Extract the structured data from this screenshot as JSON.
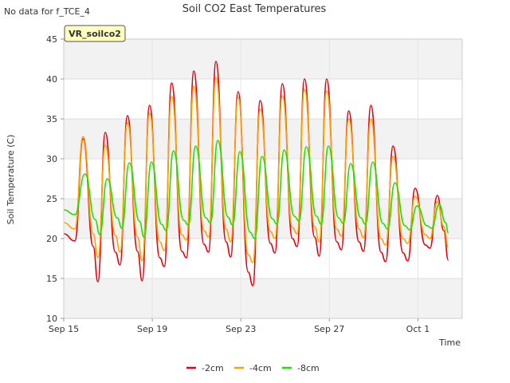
{
  "chart_data": {
    "type": "line",
    "title": "Soil CO2 East Temperatures",
    "note": "No data for f_TCE_4",
    "station_label": "VR_soilco2",
    "xlabel": "Time",
    "ylabel": "Soil Temperature (C)",
    "ylim": [
      10,
      45
    ],
    "yticks": [
      10,
      15,
      20,
      25,
      30,
      35,
      40,
      45
    ],
    "xlim": [
      "2023-09-15",
      "2023-10-03"
    ],
    "xticks": [
      {
        "date": "2023-09-15",
        "label": "Sep 15"
      },
      {
        "date": "2023-09-19",
        "label": "Sep 19"
      },
      {
        "date": "2023-09-23",
        "label": "Sep 23"
      },
      {
        "date": "2023-09-27",
        "label": "Sep 27"
      },
      {
        "date": "2023-10-01",
        "label": "Oct 1"
      }
    ],
    "grid": true,
    "legend_position": "bottom",
    "series": [
      {
        "name": "-2cm",
        "color": "#e8000b",
        "points": [
          [
            "2023-09-15 00:00",
            20.6
          ],
          [
            "2023-09-15 12:00",
            19.7
          ],
          [
            "2023-09-15 21:00",
            32.5
          ],
          [
            "2023-09-16 08:00",
            19.0
          ],
          [
            "2023-09-16 13:00",
            14.6
          ],
          [
            "2023-09-16 21:00",
            33.3
          ],
          [
            "2023-09-17 08:00",
            18.3
          ],
          [
            "2023-09-17 13:00",
            16.7
          ],
          [
            "2023-09-17 21:00",
            35.4
          ],
          [
            "2023-09-18 08:00",
            18.4
          ],
          [
            "2023-09-18 13:00",
            14.7
          ],
          [
            "2023-09-18 21:00",
            36.7
          ],
          [
            "2023-09-19 08:00",
            17.6
          ],
          [
            "2023-09-19 13:00",
            16.5
          ],
          [
            "2023-09-19 21:00",
            39.5
          ],
          [
            "2023-09-20 08:00",
            18.4
          ],
          [
            "2023-09-20 13:00",
            17.6
          ],
          [
            "2023-09-20 21:00",
            41.0
          ],
          [
            "2023-09-21 08:00",
            19.3
          ],
          [
            "2023-09-21 13:00",
            18.3
          ],
          [
            "2023-09-21 21:00",
            42.2
          ],
          [
            "2023-09-22 08:00",
            19.6
          ],
          [
            "2023-09-22 13:00",
            17.7
          ],
          [
            "2023-09-22 21:00",
            38.4
          ],
          [
            "2023-09-23 08:00",
            15.8
          ],
          [
            "2023-09-23 13:00",
            14.1
          ],
          [
            "2023-09-23 21:00",
            37.3
          ],
          [
            "2023-09-24 08:00",
            19.4
          ],
          [
            "2023-09-24 13:00",
            18.2
          ],
          [
            "2023-09-24 21:00",
            39.4
          ],
          [
            "2023-09-25 08:00",
            20.0
          ],
          [
            "2023-09-25 13:00",
            19.0
          ],
          [
            "2023-09-25 21:00",
            40.0
          ],
          [
            "2023-09-26 08:00",
            20.2
          ],
          [
            "2023-09-26 13:00",
            17.8
          ],
          [
            "2023-09-26 21:00",
            40.0
          ],
          [
            "2023-09-27 08:00",
            19.6
          ],
          [
            "2023-09-27 13:00",
            18.6
          ],
          [
            "2023-09-27 21:00",
            36.0
          ],
          [
            "2023-09-28 08:00",
            19.6
          ],
          [
            "2023-09-28 13:00",
            18.4
          ],
          [
            "2023-09-28 21:00",
            36.7
          ],
          [
            "2023-09-29 08:00",
            18.3
          ],
          [
            "2023-09-29 13:00",
            17.1
          ],
          [
            "2023-09-29 21:00",
            31.6
          ],
          [
            "2023-09-30 08:00",
            18.2
          ],
          [
            "2023-09-30 13:00",
            17.2
          ],
          [
            "2023-09-30 21:00",
            26.3
          ],
          [
            "2023-10-01 08:00",
            19.2
          ],
          [
            "2023-10-01 13:00",
            18.8
          ],
          [
            "2023-10-01 21:00",
            25.4
          ],
          [
            "2023-10-02 04:00",
            21.0
          ],
          [
            "2023-10-02 09:00",
            17.3
          ]
        ]
      },
      {
        "name": "-4cm",
        "color": "#ff9f00",
        "points": [
          [
            "2023-09-15 00:00",
            22.0
          ],
          [
            "2023-09-15 12:00",
            21.2
          ],
          [
            "2023-09-15 21:00",
            32.8
          ],
          [
            "2023-09-16 08:00",
            20.6
          ],
          [
            "2023-09-16 13:00",
            17.6
          ],
          [
            "2023-09-16 21:00",
            31.7
          ],
          [
            "2023-09-17 08:00",
            20.4
          ],
          [
            "2023-09-17 13:00",
            18.3
          ],
          [
            "2023-09-17 21:00",
            34.5
          ],
          [
            "2023-09-18 08:00",
            20.2
          ],
          [
            "2023-09-18 13:00",
            17.2
          ],
          [
            "2023-09-18 21:00",
            35.7
          ],
          [
            "2023-09-19 08:00",
            19.6
          ],
          [
            "2023-09-19 13:00",
            18.5
          ],
          [
            "2023-09-19 21:00",
            37.8
          ],
          [
            "2023-09-20 08:00",
            20.5
          ],
          [
            "2023-09-20 13:00",
            19.8
          ],
          [
            "2023-09-20 21:00",
            39.1
          ],
          [
            "2023-09-21 08:00",
            21.0
          ],
          [
            "2023-09-21 13:00",
            20.2
          ],
          [
            "2023-09-21 21:00",
            40.2
          ],
          [
            "2023-09-22 08:00",
            21.2
          ],
          [
            "2023-09-22 13:00",
            19.6
          ],
          [
            "2023-09-22 21:00",
            37.7
          ],
          [
            "2023-09-23 08:00",
            18.0
          ],
          [
            "2023-09-23 13:00",
            17.0
          ],
          [
            "2023-09-23 21:00",
            36.2
          ],
          [
            "2023-09-24 08:00",
            20.9
          ],
          [
            "2023-09-24 13:00",
            20.0
          ],
          [
            "2023-09-24 21:00",
            37.9
          ],
          [
            "2023-09-25 08:00",
            21.4
          ],
          [
            "2023-09-25 13:00",
            20.6
          ],
          [
            "2023-09-25 21:00",
            38.7
          ],
          [
            "2023-09-26 08:00",
            21.5
          ],
          [
            "2023-09-26 13:00",
            19.6
          ],
          [
            "2023-09-26 21:00",
            38.5
          ],
          [
            "2023-09-27 08:00",
            21.2
          ],
          [
            "2023-09-27 13:00",
            20.3
          ],
          [
            "2023-09-27 21:00",
            35.0
          ],
          [
            "2023-09-28 08:00",
            21.2
          ],
          [
            "2023-09-28 13:00",
            20.1
          ],
          [
            "2023-09-28 21:00",
            35.0
          ],
          [
            "2023-09-29 08:00",
            20.0
          ],
          [
            "2023-09-29 13:00",
            19.2
          ],
          [
            "2023-09-29 21:00",
            30.3
          ],
          [
            "2023-09-30 08:00",
            20.0
          ],
          [
            "2023-09-30 13:00",
            19.4
          ],
          [
            "2023-09-30 21:00",
            25.3
          ],
          [
            "2023-10-01 08:00",
            20.5
          ],
          [
            "2023-10-01 13:00",
            20.0
          ],
          [
            "2023-10-01 21:00",
            24.6
          ],
          [
            "2023-10-02 04:00",
            21.5
          ],
          [
            "2023-10-02 09:00",
            18.9
          ]
        ]
      },
      {
        "name": "-8cm",
        "color": "#1fe000",
        "points": [
          [
            "2023-09-15 00:00",
            23.6
          ],
          [
            "2023-09-15 12:00",
            23.0
          ],
          [
            "2023-09-15 23:00",
            28.1
          ],
          [
            "2023-09-16 10:00",
            22.4
          ],
          [
            "2023-09-16 15:00",
            20.5
          ],
          [
            "2023-09-16 23:00",
            27.5
          ],
          [
            "2023-09-17 10:00",
            22.6
          ],
          [
            "2023-09-17 15:00",
            21.3
          ],
          [
            "2023-09-17 23:00",
            29.5
          ],
          [
            "2023-09-18 10:00",
            22.2
          ],
          [
            "2023-09-18 15:00",
            20.2
          ],
          [
            "2023-09-18 23:00",
            29.6
          ],
          [
            "2023-09-19 10:00",
            21.8
          ],
          [
            "2023-09-19 15:00",
            21.0
          ],
          [
            "2023-09-19 23:00",
            31.0
          ],
          [
            "2023-09-20 10:00",
            22.3
          ],
          [
            "2023-09-20 15:00",
            21.7
          ],
          [
            "2023-09-20 23:00",
            31.6
          ],
          [
            "2023-09-21 10:00",
            22.6
          ],
          [
            "2023-09-21 15:00",
            22.0
          ],
          [
            "2023-09-21 23:00",
            32.3
          ],
          [
            "2023-09-22 10:00",
            22.7
          ],
          [
            "2023-09-22 15:00",
            21.7
          ],
          [
            "2023-09-22 23:00",
            30.9
          ],
          [
            "2023-09-23 10:00",
            20.8
          ],
          [
            "2023-09-23 15:00",
            20.0
          ],
          [
            "2023-09-23 23:00",
            30.3
          ],
          [
            "2023-09-24 10:00",
            22.5
          ],
          [
            "2023-09-24 15:00",
            21.8
          ],
          [
            "2023-09-24 23:00",
            31.1
          ],
          [
            "2023-09-25 10:00",
            22.8
          ],
          [
            "2023-09-25 15:00",
            22.2
          ],
          [
            "2023-09-25 23:00",
            31.5
          ],
          [
            "2023-09-26 10:00",
            22.8
          ],
          [
            "2023-09-26 15:00",
            21.8
          ],
          [
            "2023-09-26 23:00",
            31.6
          ],
          [
            "2023-09-27 10:00",
            22.6
          ],
          [
            "2023-09-27 15:00",
            21.9
          ],
          [
            "2023-09-27 23:00",
            29.4
          ],
          [
            "2023-09-28 10:00",
            22.6
          ],
          [
            "2023-09-28 15:00",
            21.8
          ],
          [
            "2023-09-28 23:00",
            29.6
          ],
          [
            "2023-09-29 10:00",
            21.9
          ],
          [
            "2023-09-29 15:00",
            21.2
          ],
          [
            "2023-09-29 23:00",
            27.0
          ],
          [
            "2023-09-30 10:00",
            21.6
          ],
          [
            "2023-09-30 15:00",
            21.1
          ],
          [
            "2023-09-30 23:00",
            24.1
          ],
          [
            "2023-10-01 10:00",
            21.6
          ],
          [
            "2023-10-01 15:00",
            21.3
          ],
          [
            "2023-10-01 23:00",
            24.3
          ],
          [
            "2023-10-02 06:00",
            22.0
          ],
          [
            "2023-10-02 09:00",
            20.7
          ]
        ]
      }
    ]
  }
}
